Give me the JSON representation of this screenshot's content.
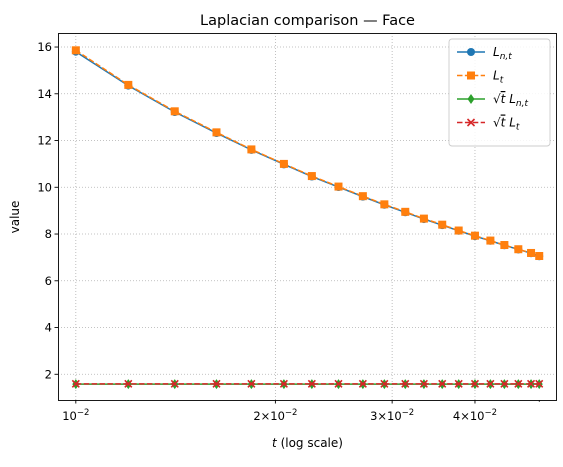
{
  "chart_data": {
    "type": "line",
    "title": "Laplacian comparison — Face",
    "xlabel_main": "t",
    "xlabel_suffix": " (log scale)",
    "ylabel": "value",
    "xscale": "log",
    "xlim": [
      0.0094,
      0.053
    ],
    "ylim": [
      0.9,
      16.6
    ],
    "grid": true,
    "legend_position": "upper-right",
    "x_ticks": [
      {
        "value": 0.01,
        "mantissa": "",
        "exponent": "−2"
      },
      {
        "value": 0.02,
        "mantissa": "2",
        "exponent": "−2"
      },
      {
        "value": 0.03,
        "mantissa": "3",
        "exponent": "−2"
      },
      {
        "value": 0.04,
        "mantissa": "4",
        "exponent": "−2"
      }
    ],
    "y_ticks": [
      2,
      4,
      6,
      8,
      10,
      12,
      14,
      16
    ],
    "x": [
      0.01,
      0.012,
      0.0141,
      0.0163,
      0.0184,
      0.0206,
      0.0227,
      0.0249,
      0.0271,
      0.0292,
      0.0314,
      0.0335,
      0.0357,
      0.0378,
      0.04,
      0.0422,
      0.0443,
      0.0465,
      0.0486,
      0.05
    ],
    "series": [
      {
        "name": "L_{n,t}",
        "label_main": "L",
        "label_sub": "n,t",
        "sqrt": false,
        "color": "#1f77b4",
        "linestyle": "solid",
        "marker": "circle",
        "values": [
          15.8,
          14.35,
          13.22,
          12.32,
          11.6,
          10.98,
          10.46,
          10.01,
          9.6,
          9.25,
          8.93,
          8.64,
          8.38,
          8.14,
          7.91,
          7.71,
          7.52,
          7.34,
          7.18,
          7.05
        ]
      },
      {
        "name": "L_t",
        "label_main": "L",
        "label_sub": "t",
        "sqrt": false,
        "color": "#ff7f0e",
        "linestyle": "dashed",
        "marker": "square",
        "values": [
          15.86,
          14.38,
          13.25,
          12.35,
          11.62,
          11.0,
          10.48,
          10.03,
          9.62,
          9.27,
          8.95,
          8.66,
          8.4,
          8.15,
          7.93,
          7.72,
          7.53,
          7.35,
          7.19,
          7.06
        ]
      },
      {
        "name": "sqrt(t) L_{n,t}",
        "label_main": "L",
        "label_sub": "n,t",
        "sqrt": true,
        "color": "#2ca02c",
        "linestyle": "solid",
        "marker": "diamond",
        "values": [
          1.58,
          1.58,
          1.58,
          1.58,
          1.58,
          1.58,
          1.58,
          1.58,
          1.58,
          1.58,
          1.58,
          1.58,
          1.58,
          1.58,
          1.58,
          1.58,
          1.58,
          1.58,
          1.58,
          1.58
        ]
      },
      {
        "name": "sqrt(t) L_t",
        "label_main": "L",
        "label_sub": "t",
        "sqrt": true,
        "color": "#d62728",
        "linestyle": "dashed",
        "marker": "x",
        "values": [
          1.59,
          1.59,
          1.59,
          1.59,
          1.59,
          1.59,
          1.59,
          1.59,
          1.59,
          1.59,
          1.59,
          1.59,
          1.59,
          1.59,
          1.59,
          1.59,
          1.59,
          1.59,
          1.59,
          1.59
        ]
      }
    ]
  }
}
